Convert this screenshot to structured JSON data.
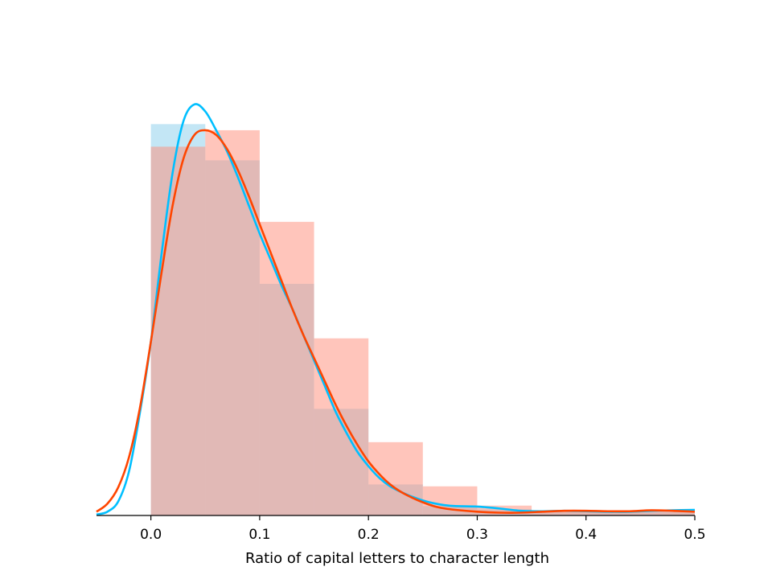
{
  "chart_data": {
    "type": "histogram with density curves",
    "title": "",
    "xlabel": "Ratio of capital letters to character length",
    "ylabel": "",
    "xlim": [
      -0.05,
      0.5
    ],
    "ylim": [
      0,
      9.5
    ],
    "xticks": [
      {
        "value": 0.0,
        "label": "0.0"
      },
      {
        "value": 0.1,
        "label": "0.1"
      },
      {
        "value": 0.2,
        "label": "0.2"
      },
      {
        "value": 0.3,
        "label": "0.3"
      },
      {
        "value": 0.4,
        "label": "0.4"
      },
      {
        "value": 0.5,
        "label": "0.5"
      }
    ],
    "grid": false,
    "legend": "none",
    "series": [
      {
        "color": "#87CEEB",
        "curve_color": "#00BFFF",
        "bars": [
          {
            "x0": 0.0,
            "x1": 0.05,
            "height": 8.33
          },
          {
            "x0": 0.05,
            "x1": 0.1,
            "height": 7.56
          },
          {
            "x0": 0.1,
            "x1": 0.15,
            "height": 4.93
          },
          {
            "x0": 0.15,
            "x1": 0.2,
            "height": 2.27
          },
          {
            "x0": 0.2,
            "x1": 0.25,
            "height": 0.66
          },
          {
            "x0": 0.25,
            "x1": 0.3,
            "height": 0.2
          },
          {
            "x0": 0.3,
            "x1": 0.35,
            "height": 0.13
          },
          {
            "x0": 0.35,
            "x1": 0.4,
            "height": 0.08
          },
          {
            "x0": 0.4,
            "x1": 0.45,
            "height": 0.07
          },
          {
            "x0": 0.45,
            "x1": 0.5,
            "height": 0.1
          }
        ],
        "density": [
          [
            -0.05,
            0.02
          ],
          [
            -0.04,
            0.08
          ],
          [
            -0.03,
            0.3
          ],
          [
            -0.02,
            0.95
          ],
          [
            -0.01,
            2.2
          ],
          [
            0.0,
            3.7
          ],
          [
            0.01,
            5.6
          ],
          [
            0.02,
            7.3
          ],
          [
            0.03,
            8.4
          ],
          [
            0.04,
            8.75
          ],
          [
            0.05,
            8.6
          ],
          [
            0.06,
            8.2
          ],
          [
            0.07,
            7.75
          ],
          [
            0.08,
            7.2
          ],
          [
            0.09,
            6.6
          ],
          [
            0.1,
            6.0
          ],
          [
            0.11,
            5.45
          ],
          [
            0.12,
            4.9
          ],
          [
            0.13,
            4.4
          ],
          [
            0.14,
            3.85
          ],
          [
            0.15,
            3.3
          ],
          [
            0.16,
            2.75
          ],
          [
            0.17,
            2.2
          ],
          [
            0.18,
            1.75
          ],
          [
            0.19,
            1.35
          ],
          [
            0.2,
            1.05
          ],
          [
            0.21,
            0.8
          ],
          [
            0.22,
            0.62
          ],
          [
            0.23,
            0.5
          ],
          [
            0.24,
            0.4
          ],
          [
            0.25,
            0.32
          ],
          [
            0.26,
            0.26
          ],
          [
            0.27,
            0.22
          ],
          [
            0.28,
            0.2
          ],
          [
            0.3,
            0.19
          ],
          [
            0.32,
            0.15
          ],
          [
            0.34,
            0.1
          ],
          [
            0.36,
            0.09
          ],
          [
            0.38,
            0.1
          ],
          [
            0.4,
            0.09
          ],
          [
            0.42,
            0.08
          ],
          [
            0.44,
            0.08
          ],
          [
            0.46,
            0.1
          ],
          [
            0.48,
            0.11
          ],
          [
            0.5,
            0.12
          ]
        ]
      },
      {
        "color": "#FF8C78",
        "curve_color": "#FF4500",
        "bars": [
          {
            "x0": 0.0,
            "x1": 0.05,
            "height": 7.85
          },
          {
            "x0": 0.05,
            "x1": 0.1,
            "height": 8.2
          },
          {
            "x0": 0.1,
            "x1": 0.15,
            "height": 6.25
          },
          {
            "x0": 0.15,
            "x1": 0.2,
            "height": 3.77
          },
          {
            "x0": 0.2,
            "x1": 0.25,
            "height": 1.56
          },
          {
            "x0": 0.25,
            "x1": 0.3,
            "height": 0.62
          },
          {
            "x0": 0.3,
            "x1": 0.35,
            "height": 0.21
          },
          {
            "x0": 0.35,
            "x1": 0.4,
            "height": 0.08
          },
          {
            "x0": 0.4,
            "x1": 0.45,
            "height": 0.09
          },
          {
            "x0": 0.45,
            "x1": 0.5,
            "height": 0.11
          }
        ],
        "density": [
          [
            -0.05,
            0.08
          ],
          [
            -0.04,
            0.25
          ],
          [
            -0.03,
            0.6
          ],
          [
            -0.02,
            1.25
          ],
          [
            -0.01,
            2.3
          ],
          [
            0.0,
            3.7
          ],
          [
            0.01,
            5.2
          ],
          [
            0.02,
            6.6
          ],
          [
            0.03,
            7.6
          ],
          [
            0.04,
            8.1
          ],
          [
            0.05,
            8.2
          ],
          [
            0.06,
            8.1
          ],
          [
            0.07,
            7.8
          ],
          [
            0.08,
            7.35
          ],
          [
            0.09,
            6.8
          ],
          [
            0.1,
            6.2
          ],
          [
            0.11,
            5.6
          ],
          [
            0.12,
            5.0
          ],
          [
            0.13,
            4.4
          ],
          [
            0.14,
            3.85
          ],
          [
            0.15,
            3.35
          ],
          [
            0.16,
            2.85
          ],
          [
            0.17,
            2.35
          ],
          [
            0.18,
            1.9
          ],
          [
            0.19,
            1.5
          ],
          [
            0.2,
            1.15
          ],
          [
            0.21,
            0.88
          ],
          [
            0.22,
            0.66
          ],
          [
            0.23,
            0.5
          ],
          [
            0.24,
            0.38
          ],
          [
            0.25,
            0.28
          ],
          [
            0.26,
            0.2
          ],
          [
            0.27,
            0.15
          ],
          [
            0.28,
            0.12
          ],
          [
            0.3,
            0.08
          ],
          [
            0.32,
            0.06
          ],
          [
            0.34,
            0.06
          ],
          [
            0.36,
            0.08
          ],
          [
            0.38,
            0.1
          ],
          [
            0.4,
            0.1
          ],
          [
            0.42,
            0.09
          ],
          [
            0.44,
            0.09
          ],
          [
            0.46,
            0.11
          ],
          [
            0.48,
            0.1
          ],
          [
            0.5,
            0.08
          ]
        ]
      }
    ]
  }
}
